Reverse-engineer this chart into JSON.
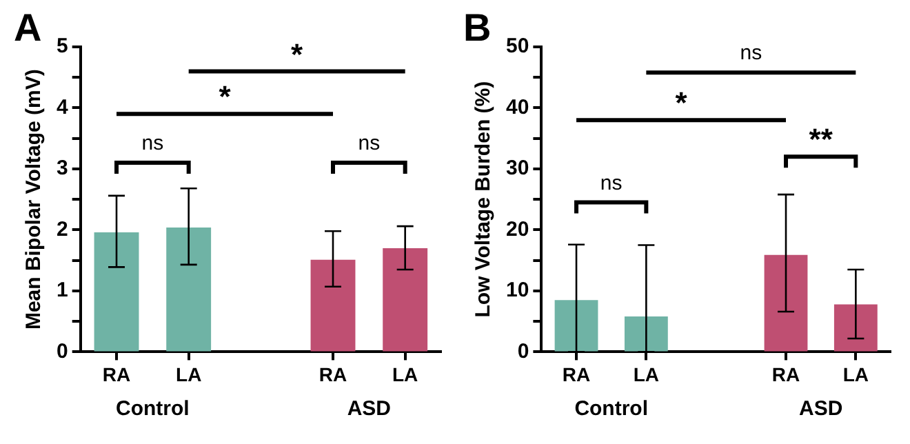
{
  "chart_data": [
    {
      "type": "bar",
      "title": "A",
      "ylabel": "Mean Bipolar Voltage (mV)",
      "categories": [
        "RA",
        "LA",
        null,
        "RA",
        "LA"
      ],
      "series": [
        {
          "name": "Control",
          "color": "#6fb3a5",
          "values": [
            1.96,
            2.04,
            null,
            null,
            null
          ],
          "errors": [
            [
              1.39,
              2.56
            ],
            [
              1.43,
              2.68
            ],
            null,
            null,
            null
          ]
        },
        {
          "name": "ASD",
          "color": "#bf4f72",
          "values": [
            null,
            null,
            null,
            1.51,
            1.7
          ],
          "errors": [
            null,
            null,
            null,
            [
              1.07,
              1.98
            ],
            [
              1.35,
              2.06
            ]
          ]
        }
      ],
      "ylim": [
        0,
        5
      ],
      "yticks": [
        0,
        {
          "value": 0.5,
          "label": null
        },
        1,
        {
          "value": 1.5,
          "label": null
        },
        2,
        {
          "value": 2.5,
          "label": null
        },
        3,
        {
          "value": 3.5,
          "label": null
        },
        4,
        {
          "value": 4.5,
          "label": null
        },
        5
      ],
      "annotations": [
        "ns",
        "ns",
        "*",
        "*"
      ]
    },
    {
      "type": "bar",
      "title": "B",
      "ylabel": "Low Voltage Burden (%)",
      "categories": [
        "RA",
        "LA",
        null,
        "RA",
        "LA"
      ],
      "series": [
        {
          "name": "Control",
          "color": "#6fb3a5",
          "values": [
            8.5,
            5.8,
            null,
            null,
            null
          ],
          "errors": [
            [
              0,
              17.6
            ],
            [
              0,
              17.5
            ],
            null,
            null,
            null
          ]
        },
        {
          "name": "ASD",
          "color": "#bf4f72",
          "values": [
            null,
            null,
            null,
            15.9,
            7.8
          ],
          "errors": [
            null,
            null,
            null,
            [
              6.6,
              25.8
            ],
            [
              2.2,
              13.5
            ]
          ]
        }
      ],
      "ylim": [
        0,
        50
      ],
      "yticks": [
        0,
        {
          "value": 5,
          "label": null
        },
        10,
        {
          "value": 15,
          "label": null
        },
        20,
        {
          "value": 25,
          "label": null
        },
        30,
        {
          "value": 35,
          "label": null
        },
        40,
        {
          "value": 45,
          "label": null
        },
        50
      ],
      "annotations": [
        "ns",
        "**",
        "*",
        "ns"
      ]
    }
  ]
}
